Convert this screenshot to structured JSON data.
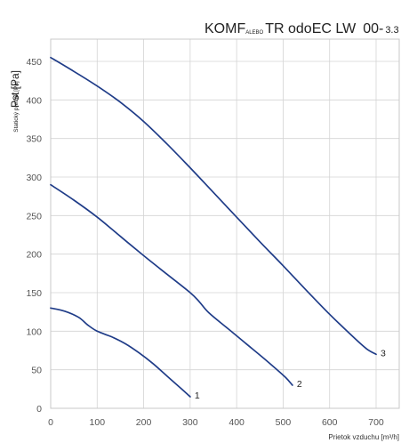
{
  "chart_data": {
    "type": "line",
    "title": {
      "main": "KOMF",
      "sub": "ALEBO",
      "rest": "TR odoEC LW",
      "model": "00-",
      "suffix": "3.3"
    },
    "ylabel_big": "Pst [Pa]",
    "ylabel_small": "Statický pretlak [Pa]",
    "xlabel": "Prietok vzduchu [m³/h]",
    "xlim": [
      0,
      750
    ],
    "ylim": [
      0,
      470
    ],
    "xticks": [
      0,
      100,
      200,
      300,
      400,
      500,
      600,
      700
    ],
    "yticks": [
      0,
      50,
      100,
      150,
      200,
      250,
      300,
      350,
      400,
      450
    ],
    "grid": true,
    "line_color": "#1f3c88",
    "series": [
      {
        "name": "1",
        "x": [
          0,
          30,
          60,
          80,
          100,
          130,
          160,
          190,
          220,
          250,
          280,
          300
        ],
        "y": [
          130,
          126,
          118,
          108,
          100,
          93,
          84,
          72,
          58,
          42,
          26,
          15
        ]
      },
      {
        "name": "2",
        "x": [
          0,
          50,
          100,
          150,
          200,
          250,
          300,
          320,
          340,
          380,
          420,
          460,
          500,
          510,
          520
        ],
        "y": [
          290,
          270,
          248,
          223,
          198,
          174,
          150,
          138,
          124,
          104,
          84,
          64,
          43,
          37,
          30
        ]
      },
      {
        "name": "3",
        "x": [
          0,
          50,
          100,
          150,
          200,
          250,
          300,
          350,
          400,
          450,
          500,
          550,
          600,
          650,
          680,
          700
        ],
        "y": [
          455,
          437,
          418,
          397,
          372,
          343,
          312,
          280,
          248,
          216,
          185,
          153,
          122,
          93,
          77,
          70
        ]
      }
    ],
    "curve_labels": [
      "1",
      "2",
      "3"
    ]
  }
}
